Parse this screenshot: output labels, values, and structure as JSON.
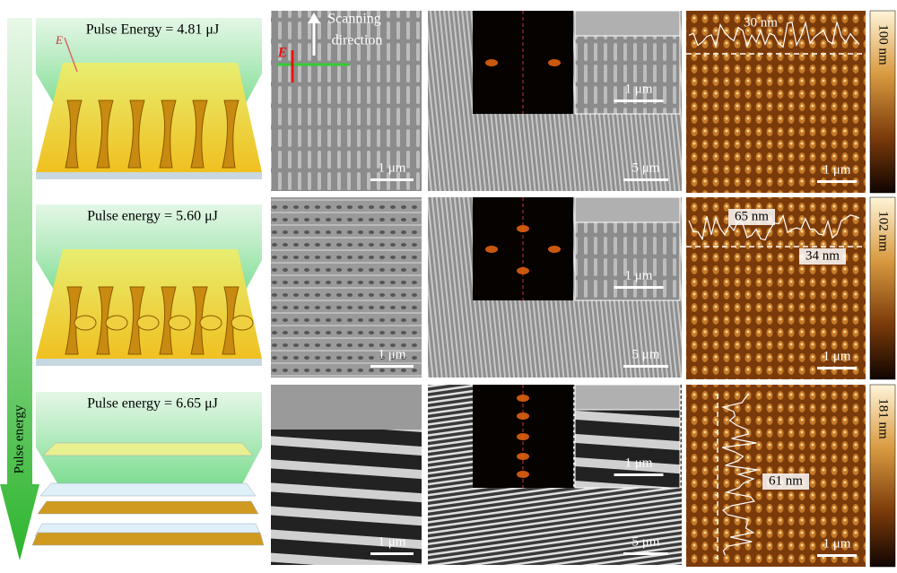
{
  "axis_label": "Pulse energy",
  "scanning_direction": [
    "Scanning",
    "direction"
  ],
  "field_labels": [
    "E",
    "E"
  ],
  "rows": [
    {
      "schematic_label": "Pulse Energy = 4.81 μJ",
      "sem_scale": "1 μm",
      "overview_scale": "5 μm",
      "inset_scale": "1 μm",
      "afm_scale": "1 μm",
      "afm_annotations": [
        "30 nm"
      ],
      "colorbar_label": "100 nm"
    },
    {
      "schematic_label": "Pulse energy = 5.60 μJ",
      "sem_scale": "1 μm",
      "overview_scale": "5 μm",
      "inset_scale": "1 μm",
      "afm_scale": "1 μm",
      "afm_annotations": [
        "65 nm",
        "34 nm"
      ],
      "colorbar_label": "102 nm"
    },
    {
      "schematic_label": "Pulse energy = 6.65 μJ",
      "sem_scale": "1 μm",
      "overview_scale": "5 μm",
      "inset_scale": "1 μm",
      "afm_scale": "1 μm",
      "afm_annotations": [
        "61 nm"
      ],
      "colorbar_label": "181 nm"
    }
  ]
}
